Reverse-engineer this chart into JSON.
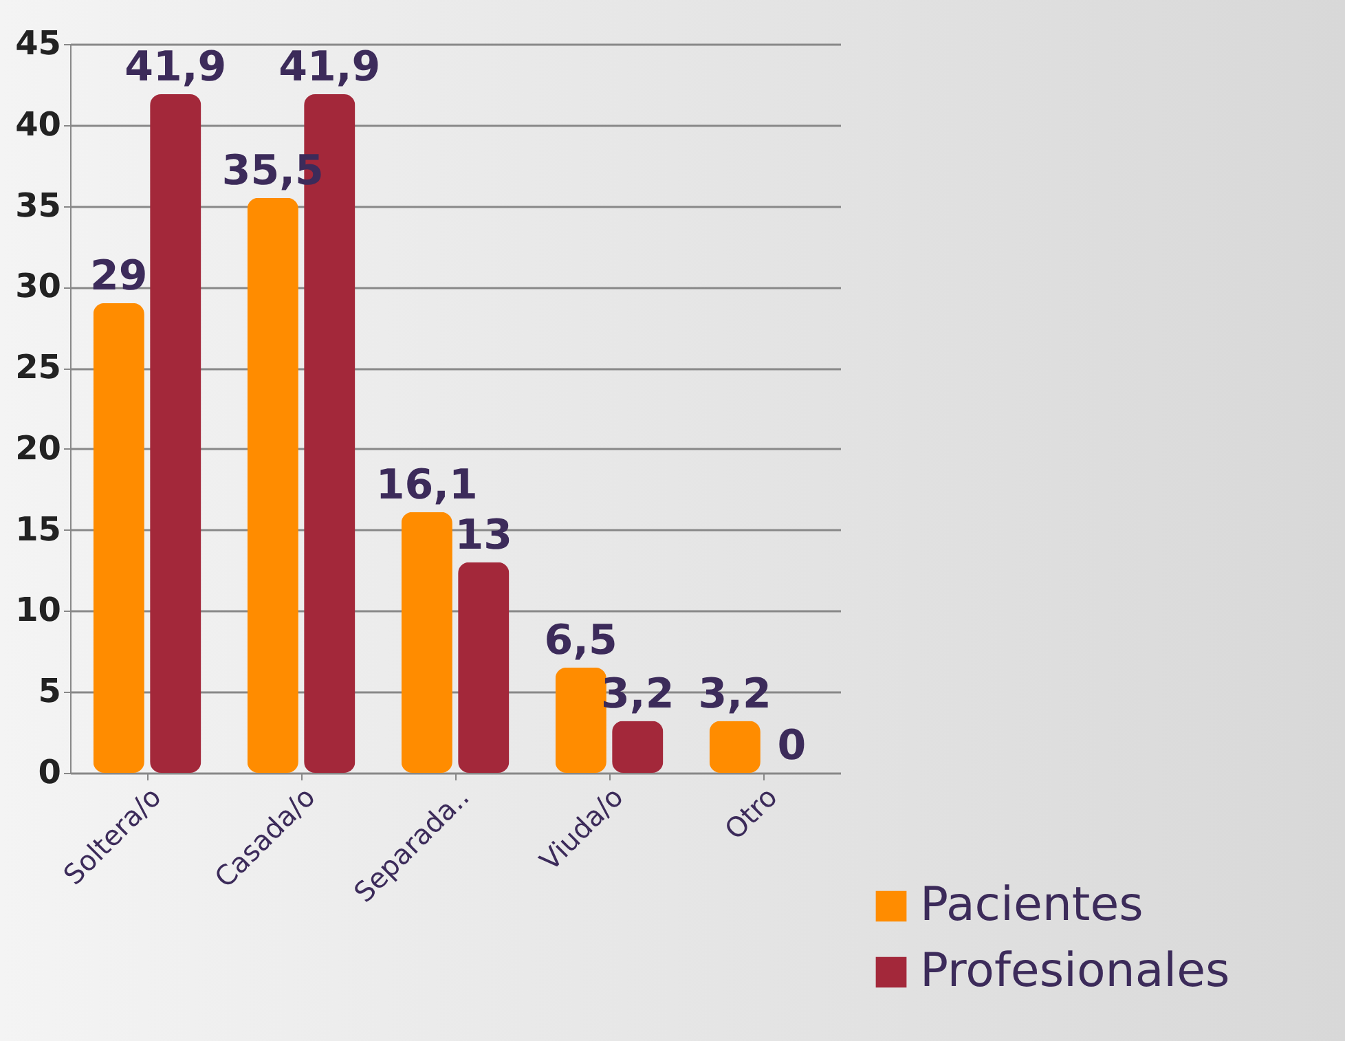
{
  "chart_data": {
    "type": "bar",
    "categories": [
      "Soltera/o",
      "Casada/o",
      "Separada..",
      "Viuda/o",
      "Otro"
    ],
    "series": [
      {
        "name": "Pacientes",
        "color": "#ff8c00",
        "values": [
          29,
          35.5,
          16.1,
          6.5,
          3.2
        ],
        "value_labels": [
          "29",
          "35,5",
          "16,1",
          "6,5",
          "3,2"
        ]
      },
      {
        "name": "Profesionales",
        "color": "#a3283a",
        "values": [
          41.9,
          41.9,
          13,
          3.2,
          0
        ],
        "value_labels": [
          "41,9",
          "41,9",
          "13",
          "3,2",
          "0"
        ]
      }
    ],
    "ylim": [
      0,
      45
    ],
    "yticks": [
      0,
      5,
      10,
      15,
      20,
      25,
      30,
      35,
      40,
      45
    ],
    "grid": "y",
    "legend": "bottom right"
  }
}
